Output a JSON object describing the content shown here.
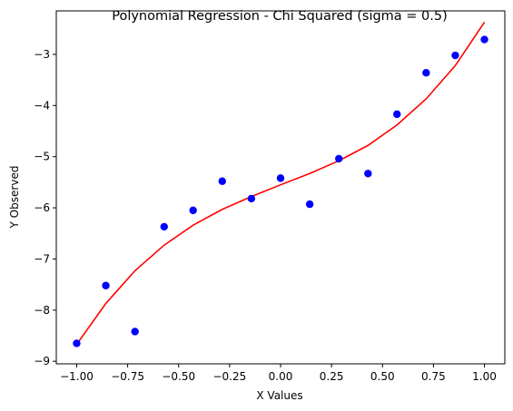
{
  "chart_data": {
    "type": "scatter",
    "title": "Polynomial Regression - Chi Squared (sigma = 0.5)",
    "xlabel": "X Values",
    "ylabel": "Y Observed",
    "xlim": [
      -1.1,
      1.1
    ],
    "ylim": [
      -9.05,
      -2.15
    ],
    "x_ticks": [
      {
        "value": -1.0,
        "label": "−1.00"
      },
      {
        "value": -0.75,
        "label": "−0.75"
      },
      {
        "value": -0.5,
        "label": "−0.50"
      },
      {
        "value": -0.25,
        "label": "−0.25"
      },
      {
        "value": 0.0,
        "label": "0.00"
      },
      {
        "value": 0.25,
        "label": "0.25"
      },
      {
        "value": 0.5,
        "label": "0.50"
      },
      {
        "value": 0.75,
        "label": "0.75"
      },
      {
        "value": 1.0,
        "label": "1.00"
      }
    ],
    "y_ticks": [
      {
        "value": -9,
        "label": "−9"
      },
      {
        "value": -8,
        "label": "−8"
      },
      {
        "value": -7,
        "label": "−7"
      },
      {
        "value": -6,
        "label": "−6"
      },
      {
        "value": -5,
        "label": "−5"
      },
      {
        "value": -4,
        "label": "−4"
      },
      {
        "value": -3,
        "label": "−3"
      }
    ],
    "grid": false,
    "series": [
      {
        "kind": "scatter",
        "color": "#0000ff",
        "x": [
          -1.0,
          -0.857,
          -0.714,
          -0.571,
          -0.429,
          -0.286,
          -0.143,
          0.0,
          0.143,
          0.286,
          0.429,
          0.571,
          0.714,
          0.857,
          1.0
        ],
        "y": [
          -8.65,
          -7.52,
          -8.42,
          -6.37,
          -6.05,
          -5.48,
          -5.82,
          -5.42,
          -5.93,
          -5.04,
          -5.33,
          -4.17,
          -3.36,
          -3.02,
          -2.71
        ]
      },
      {
        "kind": "line",
        "color": "#ff0000",
        "x": [
          -1.0,
          -0.857,
          -0.714,
          -0.571,
          -0.429,
          -0.286,
          -0.143,
          0.0,
          0.143,
          0.286,
          0.429,
          0.571,
          0.714,
          0.857,
          1.0
        ],
        "y": [
          -8.67,
          -7.87,
          -7.23,
          -6.73,
          -6.34,
          -6.03,
          -5.78,
          -5.55,
          -5.33,
          -5.08,
          -4.78,
          -4.38,
          -3.87,
          -3.22,
          -2.37
        ]
      }
    ]
  }
}
